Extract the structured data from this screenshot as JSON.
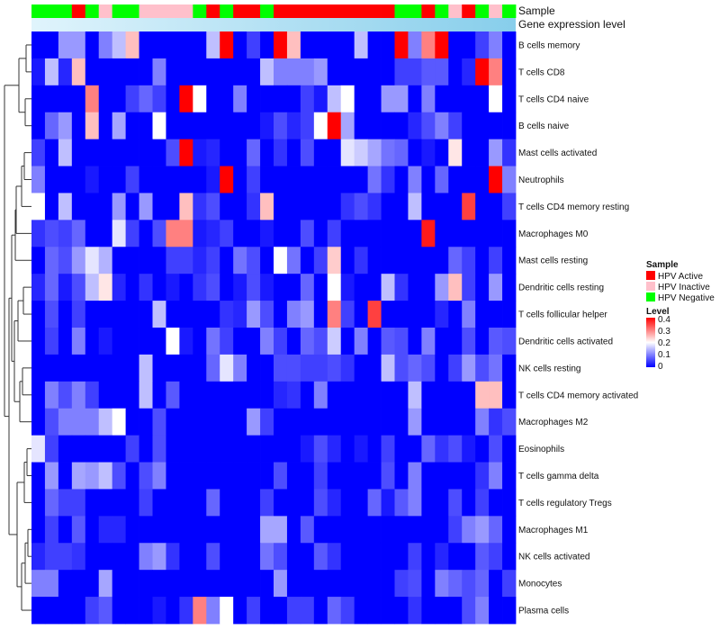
{
  "chart_data": {
    "type": "heatmap",
    "title": "",
    "annotation_rows": [
      "Sample",
      "Gene expression level"
    ],
    "rows": [
      "B cells memory",
      "T cells CD8",
      "T cells CD4 naive",
      "B cells naive",
      "Mast cells activated",
      "Neutrophils",
      "T cells CD4 memory resting",
      "Macrophages M0",
      "Mast cells resting",
      "Dendritic cells resting",
      "T cells follicular helper",
      "Dendritic cells activated",
      "NK cells resting",
      "T cells CD4 memory activated",
      "Macrophages M2",
      "Eosinophils",
      "T cells gamma delta",
      "T cells regulatory  Tregs",
      "Macrophages M1",
      "NK cells activated",
      "Monocytes",
      "Plasma cells"
    ],
    "n_columns": 36,
    "sample_groups": [
      "Negative",
      "Negative",
      "Negative",
      "Active",
      "Negative",
      "Inactive",
      "Negative",
      "Negative",
      "Inactive",
      "Inactive",
      "Inactive",
      "Inactive",
      "Negative",
      "Active",
      "Negative",
      "Active",
      "Active",
      "Negative",
      "Active",
      "Active",
      "Active",
      "Active",
      "Active",
      "Active",
      "Active",
      "Active",
      "Active",
      "Negative",
      "Negative",
      "Active",
      "Negative",
      "Inactive",
      "Active",
      "Negative",
      "Inactive",
      "Negative"
    ],
    "values": [
      [
        0,
        0,
        0.12,
        0.12,
        0,
        0.1,
        0.15,
        0.25,
        0,
        0,
        0,
        0,
        0,
        0.15,
        0.4,
        0,
        0.05,
        0,
        0.42,
        0.25,
        0,
        0,
        0,
        0,
        0.15,
        0,
        0,
        0.42,
        0.1,
        0.3,
        0.4,
        0,
        0,
        0.05,
        0.1,
        0
      ],
      [
        0.02,
        0.15,
        0.03,
        0.25,
        0,
        0,
        0,
        0,
        0,
        0.1,
        0,
        0,
        0,
        0,
        0,
        0,
        0,
        0.15,
        0.1,
        0.1,
        0.1,
        0.12,
        0,
        0,
        0,
        0,
        0,
        0.05,
        0.05,
        0.07,
        0.07,
        0,
        0.03,
        0.4,
        0.3,
        0
      ],
      [
        0,
        0,
        0,
        0,
        0.3,
        0,
        0,
        0.05,
        0.08,
        0.05,
        0,
        0.42,
        0.2,
        0,
        0,
        0.1,
        0,
        0,
        0,
        0,
        0.05,
        0.02,
        0.15,
        0.2,
        0,
        0,
        0.12,
        0.12,
        0,
        0.1,
        0,
        0,
        0,
        0,
        0.2,
        0
      ],
      [
        0,
        0.08,
        0.12,
        0,
        0.25,
        0,
        0.13,
        0,
        0,
        0.2,
        0,
        0,
        0,
        0,
        0,
        0,
        0,
        0.02,
        0.06,
        0.03,
        0.05,
        0.2,
        0.4,
        0.13,
        0,
        0,
        0,
        0,
        0.03,
        0.06,
        0.1,
        0.05,
        0,
        0,
        0,
        0
      ],
      [
        0.05,
        0,
        0.15,
        0,
        0,
        0,
        0,
        0,
        0,
        0,
        0.06,
        0.42,
        0.02,
        0.03,
        0,
        0,
        0.08,
        0,
        0.04,
        0,
        0.06,
        0,
        0,
        0.18,
        0.16,
        0.13,
        0.09,
        0.08,
        0,
        0.02,
        0,
        0.22,
        0,
        0,
        0.12,
        0.04
      ],
      [
        0.1,
        0,
        0,
        0,
        0.02,
        0,
        0,
        0.05,
        0,
        0,
        0,
        0,
        0,
        0.02,
        0.42,
        0,
        0.05,
        0,
        0,
        0,
        0,
        0,
        0,
        0,
        0,
        0.09,
        0.04,
        0,
        0.1,
        0,
        0.08,
        0,
        0,
        0,
        0.42,
        0.1
      ],
      [
        0.2,
        0,
        0.15,
        0,
        0,
        0,
        0.12,
        0,
        0.12,
        0,
        0,
        0.25,
        0.04,
        0.06,
        0,
        0,
        0.04,
        0.25,
        0,
        0,
        0,
        0,
        0,
        0.04,
        0.06,
        0.04,
        0,
        0,
        0.15,
        0,
        0,
        0,
        0.35,
        0,
        0,
        0.05
      ],
      [
        0.04,
        0.06,
        0.05,
        0.08,
        0,
        0,
        0.18,
        0.05,
        0,
        0.06,
        0.3,
        0.3,
        0.02,
        0.03,
        0.05,
        0,
        0,
        0.02,
        0,
        0,
        0.06,
        0,
        0.05,
        0,
        0,
        0,
        0,
        0,
        0,
        0.38,
        0,
        0,
        0,
        0,
        0,
        0
      ],
      [
        0,
        0.08,
        0.06,
        0.12,
        0.18,
        0.14,
        0,
        0,
        0,
        0,
        0.05,
        0.05,
        0.03,
        0.05,
        0,
        0.09,
        0.06,
        0,
        0.2,
        0.09,
        0,
        0.05,
        0.24,
        0,
        0.04,
        0,
        0,
        0,
        0,
        0,
        0,
        0.08,
        0.05,
        0,
        0.05,
        0
      ],
      [
        0.03,
        0.08,
        0.02,
        0.06,
        0.15,
        0.22,
        0.03,
        0,
        0.04,
        0,
        0.02,
        0,
        0.04,
        0.06,
        0,
        0.02,
        0.06,
        0.02,
        0,
        0,
        0.08,
        0,
        0.2,
        0.02,
        0,
        0,
        0.15,
        0.04,
        0,
        0,
        0.12,
        0.25,
        0.05,
        0,
        0.12,
        0
      ],
      [
        0,
        0.06,
        0,
        0.05,
        0,
        0,
        0,
        0,
        0,
        0.15,
        0,
        0,
        0,
        0,
        0.04,
        0.03,
        0.12,
        0.06,
        0,
        0.1,
        0.12,
        0,
        0.3,
        0.05,
        0,
        0.35,
        0,
        0,
        0,
        0,
        0.03,
        0,
        0.1,
        0,
        0,
        0
      ],
      [
        0,
        0.05,
        0,
        0.1,
        0,
        0.02,
        0,
        0,
        0,
        0,
        0.2,
        0.02,
        0,
        0.09,
        0.05,
        0,
        0,
        0.1,
        0.05,
        0,
        0.08,
        0.06,
        0.16,
        0,
        0.1,
        0,
        0.07,
        0.06,
        0,
        0.1,
        0,
        0,
        0.06,
        0,
        0.07,
        0.06
      ],
      [
        0,
        0,
        0,
        0,
        0,
        0,
        0,
        0,
        0.15,
        0,
        0,
        0,
        0,
        0.08,
        0.18,
        0.1,
        0,
        0,
        0.06,
        0.06,
        0.05,
        0.05,
        0.06,
        0.04,
        0,
        0,
        0.15,
        0.06,
        0.08,
        0.06,
        0,
        0.05,
        0.12,
        0.06,
        0.09,
        0
      ],
      [
        0,
        0.1,
        0.06,
        0.1,
        0.05,
        0,
        0,
        0,
        0.15,
        0,
        0.07,
        0,
        0,
        0,
        0,
        0,
        0,
        0,
        0.03,
        0.04,
        0,
        0.1,
        0,
        0,
        0,
        0,
        0,
        0,
        0.15,
        0,
        0,
        0,
        0,
        0.25,
        0.25,
        0
      ],
      [
        0,
        0.06,
        0.1,
        0.1,
        0.1,
        0.15,
        0.2,
        0,
        0,
        0.06,
        0,
        0,
        0,
        0,
        0,
        0,
        0.12,
        0.05,
        0,
        0,
        0,
        0,
        0,
        0,
        0,
        0,
        0,
        0,
        0.12,
        0,
        0,
        0,
        0,
        0.1,
        0.04,
        0.06
      ],
      [
        0.18,
        0.05,
        0,
        0,
        0,
        0,
        0,
        0.05,
        0,
        0.06,
        0,
        0,
        0,
        0,
        0,
        0,
        0,
        0,
        0,
        0,
        0.02,
        0.06,
        0.03,
        0,
        0.02,
        0,
        0.05,
        0,
        0,
        0.08,
        0.04,
        0.06,
        0.02,
        0,
        0.06,
        0
      ],
      [
        0,
        0.12,
        0,
        0.13,
        0.12,
        0.15,
        0.06,
        0,
        0.06,
        0.1,
        0,
        0,
        0,
        0,
        0,
        0,
        0,
        0,
        0.06,
        0,
        0,
        0.05,
        0,
        0,
        0,
        0,
        0.06,
        0,
        0.1,
        0,
        0,
        0,
        0,
        0.04,
        0.1,
        0
      ],
      [
        0,
        0.08,
        0.05,
        0.05,
        0,
        0,
        0,
        0,
        0.05,
        0,
        0,
        0,
        0,
        0.08,
        0,
        0,
        0,
        0.05,
        0,
        0,
        0,
        0.06,
        0.03,
        0,
        0,
        0.08,
        0.02,
        0.07,
        0.1,
        0,
        0,
        0.06,
        0,
        0.05,
        0,
        0
      ],
      [
        0,
        0.05,
        0,
        0.07,
        0,
        0.03,
        0.03,
        0,
        0,
        0,
        0,
        0,
        0,
        0,
        0,
        0,
        0,
        0.13,
        0.13,
        0,
        0.07,
        0,
        0,
        0,
        0,
        0,
        0,
        0,
        0,
        0,
        0,
        0.05,
        0.1,
        0.12,
        0.08,
        0
      ],
      [
        0.03,
        0.05,
        0.05,
        0.04,
        0,
        0,
        0,
        0,
        0.1,
        0.12,
        0.04,
        0,
        0,
        0.06,
        0,
        0,
        0,
        0.09,
        0.06,
        0,
        0,
        0.07,
        0.04,
        0,
        0,
        0,
        0,
        0,
        0.05,
        0,
        0.03,
        0,
        0,
        0.07,
        0.05,
        0
      ],
      [
        0.1,
        0.1,
        0,
        0,
        0,
        0.13,
        0,
        0,
        0,
        0,
        0,
        0,
        0,
        0,
        0,
        0,
        0,
        0,
        0.12,
        0,
        0,
        0,
        0,
        0,
        0,
        0,
        0,
        0.05,
        0.06,
        0,
        0.1,
        0.08,
        0.06,
        0.08,
        0,
        0.05
      ],
      [
        0,
        0,
        0,
        0,
        0.05,
        0.07,
        0,
        0,
        0,
        0.02,
        0,
        0.04,
        0.3,
        0.1,
        0.2,
        0,
        0.05,
        0,
        0,
        0.05,
        0.05,
        0,
        0.08,
        0.05,
        0,
        0,
        0,
        0,
        0.04,
        0,
        0,
        0,
        0.06,
        0.1,
        0,
        0
      ]
    ],
    "column_dendrogram": false,
    "row_dendrogram": true,
    "legend": [
      {
        "title": "Sample",
        "entries": [
          {
            "label": "HPV Active",
            "color": "#ff0000"
          },
          {
            "label": "HPV Inactive",
            "color": "#ffc0cb"
          },
          {
            "label": "HPV Negative",
            "color": "#00ff00"
          }
        ]
      },
      {
        "title": "Level",
        "type": "continuous",
        "range": [
          0,
          0.4
        ],
        "ticks": [
          "0.4",
          "0.3",
          "0.2",
          "0.1",
          "0"
        ],
        "colors": {
          "low": "#0000ff",
          "mid": "#ffffff",
          "high": "#ff0000"
        }
      }
    ],
    "gene_expression_gradient": {
      "from": "#87ceeb",
      "to": "#e0f4fc"
    }
  }
}
